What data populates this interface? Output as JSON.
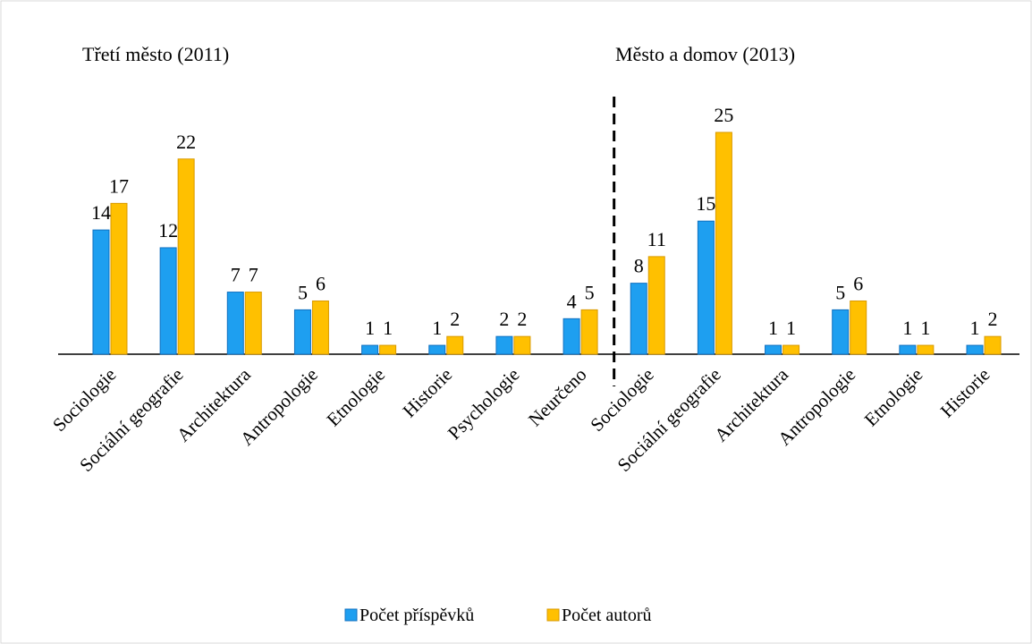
{
  "chart_data": {
    "type": "bar",
    "annotations": [
      "Třetí město (2011)",
      "Město a domov (2013)"
    ],
    "categories": [
      "Sociologie",
      "Sociální geografie",
      "Architektura",
      "Antropologie",
      "Etnologie",
      "Historie",
      "Psychologie",
      "Neurčeno",
      "Sociologie",
      "Sociální geografie",
      "Architektura",
      "Antropologie",
      "Etnologie",
      "Historie"
    ],
    "series": [
      {
        "name": "Počet příspěvků",
        "color": "#1e9ff0",
        "values": [
          14,
          12,
          7,
          5,
          1,
          1,
          2,
          4,
          8,
          15,
          1,
          5,
          1,
          1
        ]
      },
      {
        "name": "Počet autorů",
        "color": "#ffc000",
        "values": [
          17,
          22,
          7,
          6,
          1,
          2,
          2,
          5,
          11,
          25,
          1,
          6,
          1,
          2
        ]
      }
    ],
    "ylim": [
      0,
      30
    ],
    "legend": "bottom"
  }
}
